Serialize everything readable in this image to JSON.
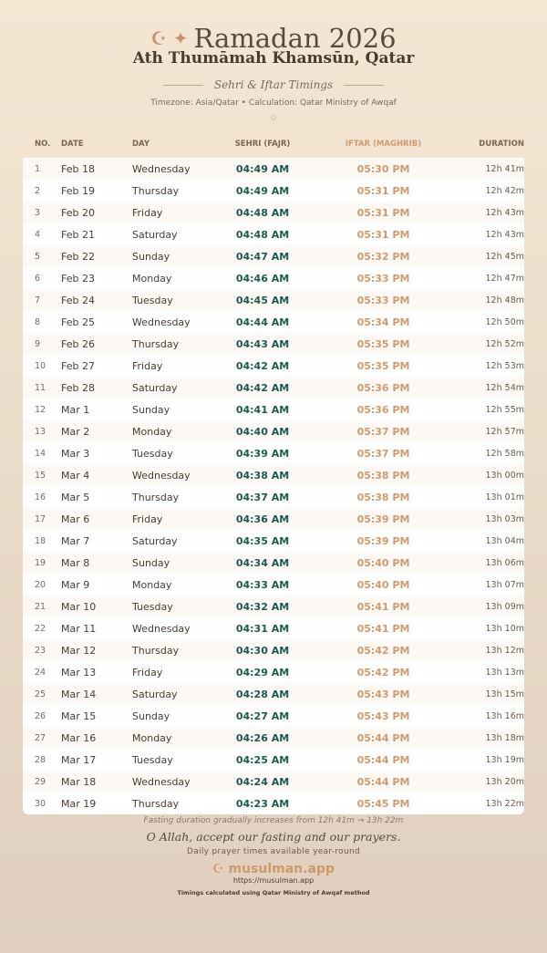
{
  "header": {
    "icons": "☪ ✦",
    "title": "Ramadan 2026",
    "city": "Ath Thumāmah Khamsūn, Qatar",
    "subtitle": "Sehri & Iftar Timings",
    "meta": "Timezone: Asia/Qatar • Calculation: Qatar Ministry of Awqaf",
    "ornament": "◇"
  },
  "colors": {
    "sehri": "#1f5a4e",
    "iftar": "#cf9a70",
    "accent": "#c9916a"
  },
  "table": {
    "headers": [
      "NO.",
      "DATE",
      "DAY",
      "SEHRI (FAJR)",
      "IFTAR (MAGHRIB)",
      "DURATION"
    ],
    "rows": [
      [
        "1",
        "Feb 18",
        "Wednesday",
        "04:49 AM",
        "05:30 PM",
        "12h 41m"
      ],
      [
        "2",
        "Feb 19",
        "Thursday",
        "04:49 AM",
        "05:31 PM",
        "12h 42m"
      ],
      [
        "3",
        "Feb 20",
        "Friday",
        "04:48 AM",
        "05:31 PM",
        "12h 43m"
      ],
      [
        "4",
        "Feb 21",
        "Saturday",
        "04:48 AM",
        "05:31 PM",
        "12h 43m"
      ],
      [
        "5",
        "Feb 22",
        "Sunday",
        "04:47 AM",
        "05:32 PM",
        "12h 45m"
      ],
      [
        "6",
        "Feb 23",
        "Monday",
        "04:46 AM",
        "05:33 PM",
        "12h 47m"
      ],
      [
        "7",
        "Feb 24",
        "Tuesday",
        "04:45 AM",
        "05:33 PM",
        "12h 48m"
      ],
      [
        "8",
        "Feb 25",
        "Wednesday",
        "04:44 AM",
        "05:34 PM",
        "12h 50m"
      ],
      [
        "9",
        "Feb 26",
        "Thursday",
        "04:43 AM",
        "05:35 PM",
        "12h 52m"
      ],
      [
        "10",
        "Feb 27",
        "Friday",
        "04:42 AM",
        "05:35 PM",
        "12h 53m"
      ],
      [
        "11",
        "Feb 28",
        "Saturday",
        "04:42 AM",
        "05:36 PM",
        "12h 54m"
      ],
      [
        "12",
        "Mar 1",
        "Sunday",
        "04:41 AM",
        "05:36 PM",
        "12h 55m"
      ],
      [
        "13",
        "Mar 2",
        "Monday",
        "04:40 AM",
        "05:37 PM",
        "12h 57m"
      ],
      [
        "14",
        "Mar 3",
        "Tuesday",
        "04:39 AM",
        "05:37 PM",
        "12h 58m"
      ],
      [
        "15",
        "Mar 4",
        "Wednesday",
        "04:38 AM",
        "05:38 PM",
        "13h 00m"
      ],
      [
        "16",
        "Mar 5",
        "Thursday",
        "04:37 AM",
        "05:38 PM",
        "13h 01m"
      ],
      [
        "17",
        "Mar 6",
        "Friday",
        "04:36 AM",
        "05:39 PM",
        "13h 03m"
      ],
      [
        "18",
        "Mar 7",
        "Saturday",
        "04:35 AM",
        "05:39 PM",
        "13h 04m"
      ],
      [
        "19",
        "Mar 8",
        "Sunday",
        "04:34 AM",
        "05:40 PM",
        "13h 06m"
      ],
      [
        "20",
        "Mar 9",
        "Monday",
        "04:33 AM",
        "05:40 PM",
        "13h 07m"
      ],
      [
        "21",
        "Mar 10",
        "Tuesday",
        "04:32 AM",
        "05:41 PM",
        "13h 09m"
      ],
      [
        "22",
        "Mar 11",
        "Wednesday",
        "04:31 AM",
        "05:41 PM",
        "13h 10m"
      ],
      [
        "23",
        "Mar 12",
        "Thursday",
        "04:30 AM",
        "05:42 PM",
        "13h 12m"
      ],
      [
        "24",
        "Mar 13",
        "Friday",
        "04:29 AM",
        "05:42 PM",
        "13h 13m"
      ],
      [
        "25",
        "Mar 14",
        "Saturday",
        "04:28 AM",
        "05:43 PM",
        "13h 15m"
      ],
      [
        "26",
        "Mar 15",
        "Sunday",
        "04:27 AM",
        "05:43 PM",
        "13h 16m"
      ],
      [
        "27",
        "Mar 16",
        "Monday",
        "04:26 AM",
        "05:44 PM",
        "13h 18m"
      ],
      [
        "28",
        "Mar 17",
        "Tuesday",
        "04:25 AM",
        "05:44 PM",
        "13h 19m"
      ],
      [
        "29",
        "Mar 18",
        "Wednesday",
        "04:24 AM",
        "05:44 PM",
        "13h 20m"
      ],
      [
        "30",
        "Mar 19",
        "Thursday",
        "04:23 AM",
        "05:45 PM",
        "13h 22m"
      ]
    ]
  },
  "footer": {
    "note": "Fasting duration gradually increases from 12h 41m → 13h 22m",
    "dua": "O Allah, accept our fasting and our prayers.",
    "tagline": "Daily prayer times available year-round",
    "brand_icon": "☪",
    "brand": "musulman.app",
    "url": "https://musulman.app",
    "method": "Timings calculated using Qatar Ministry of Awqaf method"
  }
}
